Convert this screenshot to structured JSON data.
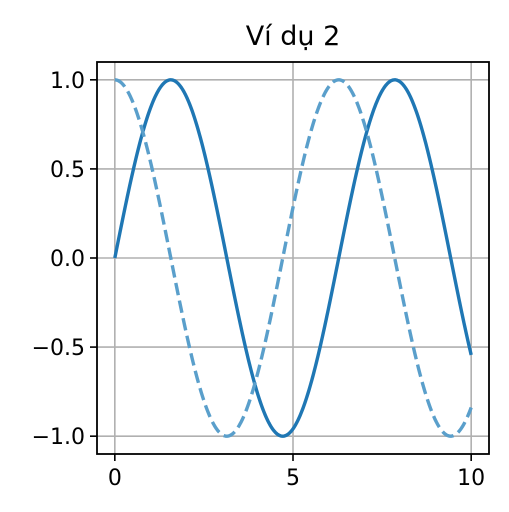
{
  "chart_data": {
    "type": "line",
    "title": "Ví dụ 2",
    "xlabel": "",
    "ylabel": "",
    "xlim": [
      -0.5,
      10.5
    ],
    "ylim": [
      -1.1,
      1.1
    ],
    "xticks": [
      0,
      5,
      10
    ],
    "xtick_labels": [
      "0",
      "5",
      "10"
    ],
    "yticks": [
      1.0,
      0.5,
      0.0,
      -0.5,
      -1.0
    ],
    "ytick_labels": [
      "1.0",
      "0.5",
      "0.0",
      "−0.5",
      "−1.0"
    ],
    "grid": true,
    "legend": "none",
    "series": [
      {
        "function": "sin(x)",
        "style": "solid",
        "color": "#1f77b4",
        "x": [
          0,
          0.5,
          1,
          1.5,
          2,
          2.5,
          3,
          3.5,
          4,
          4.5,
          5,
          5.5,
          6,
          6.5,
          7,
          7.5,
          8,
          8.5,
          9,
          9.5,
          10
        ],
        "y": [
          0.0,
          0.479,
          0.841,
          0.997,
          0.909,
          0.598,
          0.141,
          -0.351,
          -0.757,
          -0.978,
          -0.959,
          -0.706,
          -0.279,
          0.215,
          0.657,
          0.938,
          0.989,
          0.798,
          0.412,
          -0.075,
          -0.544
        ]
      },
      {
        "function": "cos(x)",
        "style": "dashed",
        "color": "#5a9fcb",
        "x": [
          0,
          0.5,
          1,
          1.5,
          2,
          2.5,
          3,
          3.5,
          4,
          4.5,
          5,
          5.5,
          6,
          6.5,
          7,
          7.5,
          8,
          8.5,
          9,
          9.5,
          10
        ],
        "y": [
          1.0,
          0.878,
          0.54,
          0.071,
          -0.416,
          -0.801,
          -0.99,
          -0.936,
          -0.654,
          -0.211,
          0.284,
          0.709,
          0.96,
          0.977,
          0.754,
          0.347,
          -0.146,
          -0.602,
          -0.911,
          -0.997,
          -0.839
        ]
      }
    ]
  }
}
